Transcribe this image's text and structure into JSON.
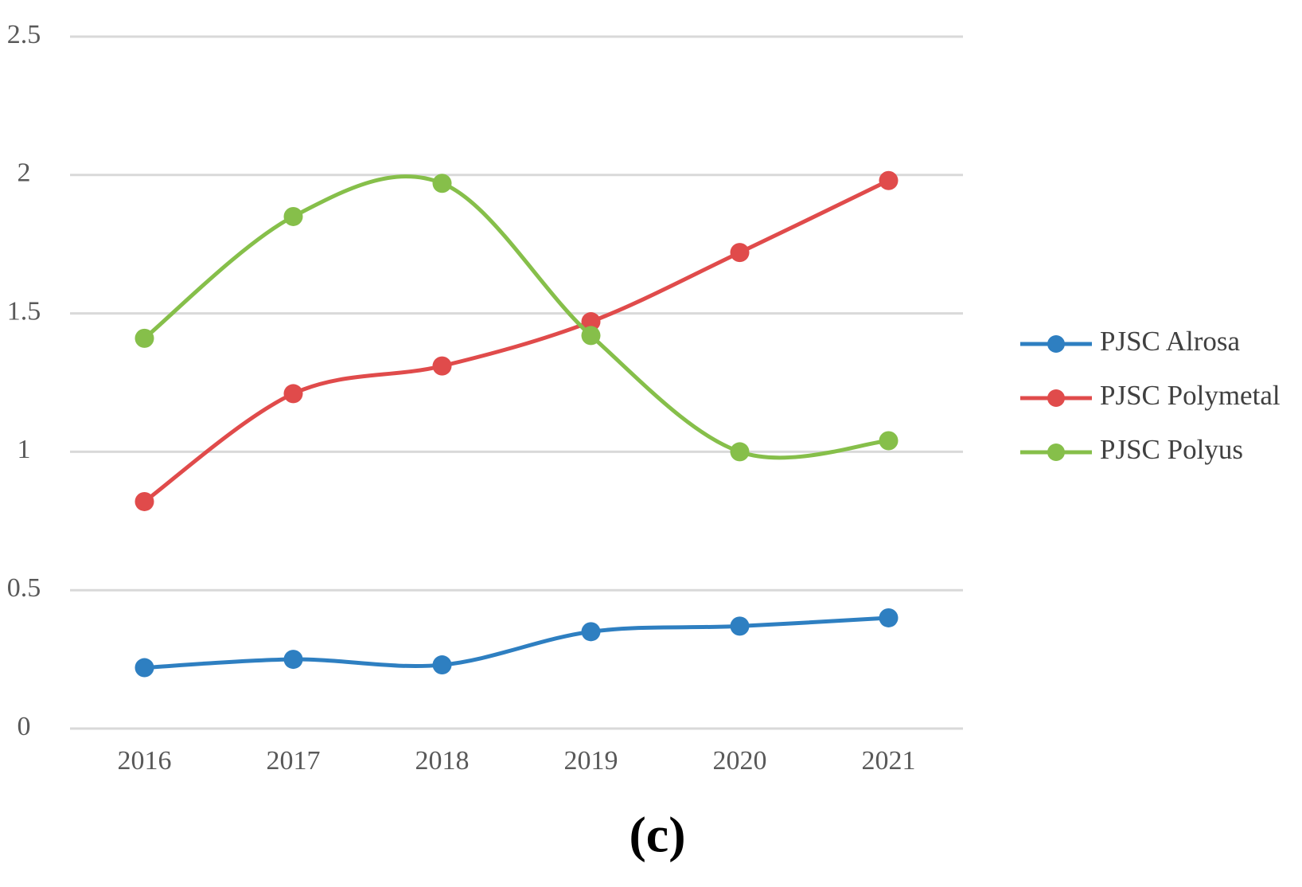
{
  "chart_data": {
    "type": "line",
    "caption": "(c)",
    "categories": [
      "2016",
      "2017",
      "2018",
      "2019",
      "2020",
      "2021"
    ],
    "series": [
      {
        "name": "PJSC Alrosa",
        "color": "#2e7fc1",
        "values": [
          0.22,
          0.25,
          0.23,
          0.35,
          0.37,
          0.4
        ]
      },
      {
        "name": "PJSC Polymetal",
        "color": "#e04b4b",
        "values": [
          0.82,
          1.21,
          1.31,
          1.47,
          1.72,
          1.98
        ]
      },
      {
        "name": "PJSC Polyus",
        "color": "#86bf4a",
        "values": [
          1.41,
          1.85,
          1.97,
          1.42,
          1.0,
          1.04
        ]
      }
    ],
    "ylim": [
      0,
      2.5
    ],
    "yticks": [
      0,
      0.5,
      1,
      1.5,
      2,
      2.5
    ],
    "grid": true,
    "smooth": true,
    "legend": "right"
  }
}
